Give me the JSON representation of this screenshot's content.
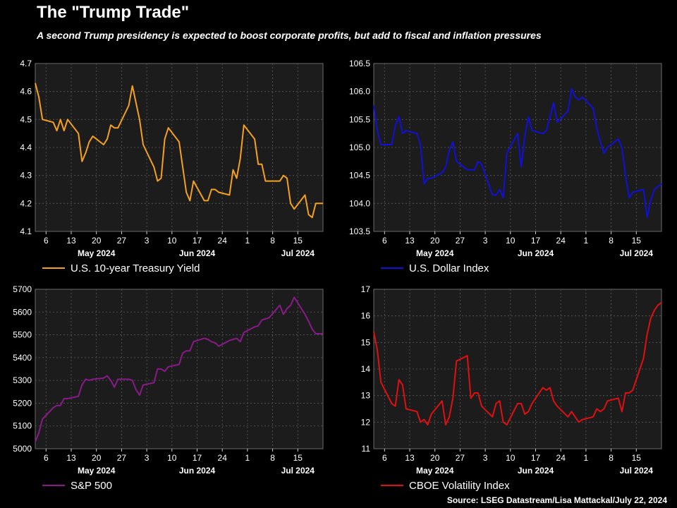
{
  "header": {
    "title": "The \"Trump Trade\"",
    "subtitle": "A second Trump presidency is expected to boost corporate profits, but add to fiscal and inflation pressures",
    "source": "Source: LSEG Datastream/Lisa Mattackal/July 22, 2024"
  },
  "chart_data": [
    {
      "type": "line",
      "id": "yield",
      "legend": "U.S. 10-year Treasury Yield",
      "color": "#f5a020",
      "ylim": [
        4.1,
        4.7
      ],
      "yticks": [
        4.1,
        4.2,
        4.3,
        4.4,
        4.5,
        4.6,
        4.7
      ],
      "x_day_labels": [
        "6",
        "13",
        "20",
        "27",
        "3",
        "10",
        "17",
        "24",
        "1",
        "8",
        "15"
      ],
      "x_month_labels": [
        "May 2024",
        "Jun 2024",
        "Jul 2024"
      ],
      "x": [
        1,
        2,
        3,
        6,
        7,
        8,
        9,
        10,
        13,
        14,
        15,
        16,
        17,
        20,
        21,
        22,
        23,
        24,
        27,
        28,
        29,
        30,
        31,
        34,
        35,
        36,
        37,
        38,
        41,
        42,
        43,
        44,
        45,
        48,
        49,
        50,
        51,
        52,
        55,
        56,
        57,
        58,
        59,
        62,
        63,
        64,
        65,
        66,
        69,
        70,
        71,
        72,
        73,
        76,
        77,
        78,
        79,
        80,
        81
      ],
      "values": [
        4.63,
        4.58,
        4.5,
        4.49,
        4.46,
        4.5,
        4.46,
        4.5,
        4.45,
        4.35,
        4.38,
        4.42,
        4.44,
        4.41,
        4.43,
        4.48,
        4.47,
        4.47,
        4.55,
        4.62,
        4.56,
        4.5,
        4.41,
        4.33,
        4.28,
        4.29,
        4.43,
        4.47,
        4.42,
        4.33,
        4.24,
        4.21,
        4.28,
        4.21,
        4.21,
        4.25,
        4.25,
        4.24,
        4.23,
        4.32,
        4.29,
        4.36,
        4.48,
        4.43,
        4.34,
        4.34,
        4.28,
        4.28,
        4.28,
        4.3,
        4.29,
        4.2,
        4.18,
        4.23,
        4.16,
        4.15,
        4.2,
        4.2,
        4.2
      ]
    },
    {
      "type": "line",
      "id": "dxy",
      "legend": "U.S. Dollar Index",
      "color": "#1010d8",
      "ylim": [
        103.5,
        106.5
      ],
      "yticks": [
        103.5,
        104.0,
        104.5,
        105.0,
        105.5,
        106.0,
        106.5
      ],
      "x_day_labels": [
        "6",
        "13",
        "20",
        "27",
        "3",
        "10",
        "17",
        "24",
        "1",
        "8",
        "15"
      ],
      "x_month_labels": [
        "May 2024",
        "Jun 2024",
        "Jul 2024"
      ],
      "x": [
        1,
        2,
        3,
        6,
        7,
        8,
        9,
        10,
        13,
        14,
        15,
        16,
        17,
        20,
        21,
        22,
        23,
        24,
        27,
        28,
        29,
        30,
        31,
        34,
        35,
        36,
        37,
        38,
        41,
        42,
        43,
        44,
        45,
        48,
        49,
        50,
        51,
        52,
        55,
        56,
        57,
        58,
        59,
        62,
        63,
        64,
        65,
        66,
        69,
        70,
        71,
        72,
        73,
        76,
        77,
        78,
        79,
        80,
        81
      ],
      "values": [
        105.75,
        105.3,
        105.05,
        105.05,
        105.4,
        105.55,
        105.25,
        105.3,
        105.25,
        105.05,
        104.35,
        104.45,
        104.45,
        104.55,
        104.65,
        104.95,
        105.1,
        104.75,
        104.6,
        104.6,
        104.6,
        104.75,
        104.7,
        104.15,
        104.15,
        104.25,
        104.1,
        104.9,
        105.25,
        104.65,
        105.2,
        105.55,
        105.3,
        105.25,
        105.3,
        105.55,
        105.8,
        105.45,
        105.65,
        106.05,
        105.9,
        105.85,
        105.9,
        105.7,
        105.35,
        105.1,
        104.9,
        105.0,
        105.15,
        105.0,
        104.5,
        104.1,
        104.2,
        104.25,
        103.75,
        104.05,
        104.25,
        104.3,
        104.35
      ]
    },
    {
      "type": "line",
      "id": "spx",
      "legend": "S&P 500",
      "color": "#8a1a8a",
      "ylim": [
        5000,
        5700
      ],
      "yticks": [
        5000,
        5100,
        5200,
        5300,
        5400,
        5500,
        5600,
        5700
      ],
      "x_day_labels": [
        "6",
        "13",
        "20",
        "27",
        "3",
        "10",
        "17",
        "24",
        "1",
        "8",
        "15"
      ],
      "x_month_labels": [
        "May 2024",
        "Jun 2024",
        "Jul 2024"
      ],
      "x": [
        1,
        2,
        3,
        6,
        7,
        8,
        9,
        10,
        13,
        14,
        15,
        16,
        17,
        20,
        21,
        22,
        23,
        24,
        27,
        28,
        29,
        30,
        31,
        34,
        35,
        36,
        37,
        38,
        41,
        42,
        43,
        44,
        45,
        48,
        49,
        50,
        51,
        52,
        55,
        56,
        57,
        58,
        59,
        62,
        63,
        64,
        65,
        66,
        69,
        70,
        71,
        72,
        73,
        76,
        77,
        78,
        79,
        80,
        81
      ],
      "values": [
        5030,
        5070,
        5130,
        5180,
        5190,
        5190,
        5220,
        5220,
        5230,
        5280,
        5305,
        5300,
        5305,
        5310,
        5320,
        5300,
        5270,
        5305,
        5305,
        5300,
        5260,
        5235,
        5280,
        5290,
        5350,
        5350,
        5340,
        5360,
        5370,
        5420,
        5430,
        5430,
        5470,
        5485,
        5480,
        5470,
        5465,
        5450,
        5475,
        5480,
        5485,
        5470,
        5510,
        5535,
        5540,
        5565,
        5570,
        5575,
        5630,
        5590,
        5615,
        5630,
        5665,
        5590,
        5560,
        5525,
        5505,
        5505,
        5505
      ]
    },
    {
      "type": "line",
      "id": "vix",
      "legend": "CBOE Volatility Index",
      "color": "#e01010",
      "ylim": [
        11,
        17
      ],
      "yticks": [
        11,
        12,
        13,
        14,
        15,
        16,
        17
      ],
      "x_day_labels": [
        "6",
        "13",
        "20",
        "27",
        "3",
        "10",
        "17",
        "24",
        "1",
        "8",
        "15"
      ],
      "x_month_labels": [
        "May 2024",
        "Jun 2024",
        "Jul 2024"
      ],
      "x": [
        1,
        2,
        3,
        6,
        7,
        8,
        9,
        10,
        13,
        14,
        15,
        16,
        17,
        20,
        21,
        22,
        23,
        24,
        27,
        28,
        29,
        30,
        31,
        34,
        35,
        36,
        37,
        38,
        41,
        42,
        43,
        44,
        45,
        48,
        49,
        50,
        51,
        52,
        55,
        56,
        57,
        58,
        59,
        62,
        63,
        64,
        65,
        66,
        69,
        70,
        71,
        72,
        73,
        76,
        77,
        78,
        79,
        80,
        81
      ],
      "values": [
        15.4,
        14.7,
        13.5,
        12.7,
        12.6,
        13.6,
        13.4,
        12.5,
        12.4,
        12.0,
        12.1,
        11.9,
        12.3,
        12.8,
        11.9,
        12.2,
        12.9,
        14.3,
        14.5,
        12.9,
        13.1,
        13.1,
        12.6,
        12.2,
        12.7,
        12.8,
        12.0,
        11.9,
        12.7,
        12.7,
        12.3,
        12.4,
        12.7,
        13.3,
        13.2,
        13.3,
        12.8,
        12.6,
        12.2,
        12.4,
        12.2,
        12.0,
        12.1,
        12.2,
        12.5,
        12.4,
        12.5,
        12.8,
        12.9,
        12.4,
        13.1,
        13.1,
        13.2,
        14.4,
        15.3,
        15.9,
        16.2,
        16.4,
        16.5
      ]
    }
  ]
}
